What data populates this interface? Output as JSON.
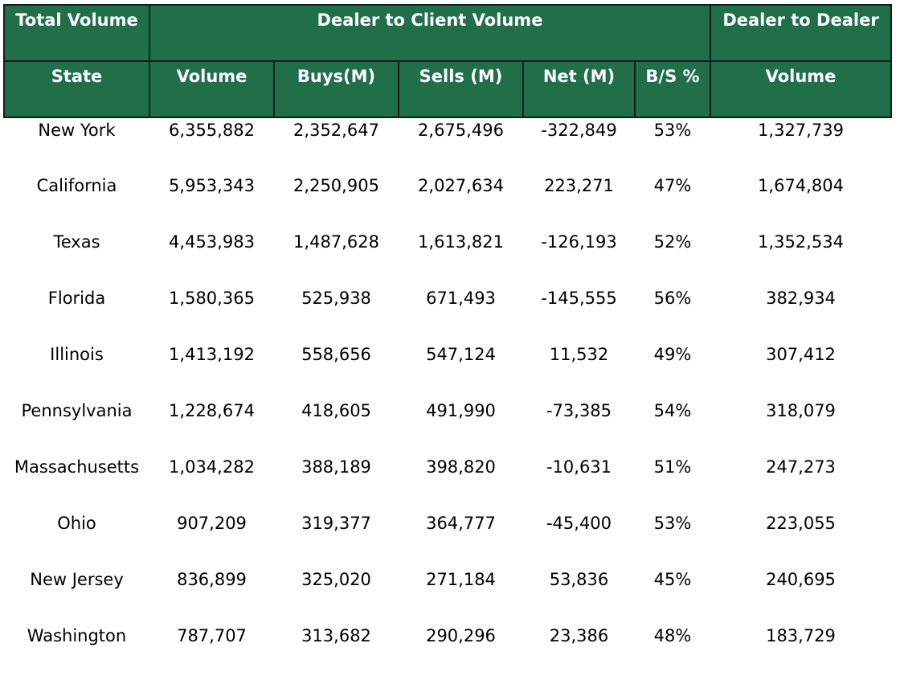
{
  "header": {
    "group_row": {
      "total_volume": "Total Volume",
      "dealer_to_client": "Dealer to Client Volume",
      "dealer_to_dealer": "Dealer to Dealer"
    },
    "columns": [
      "State",
      "Volume",
      "Buys(M)",
      "Sells (M)",
      "Net (M)",
      "B/S %",
      "Volume"
    ]
  },
  "rows": [
    [
      "New York",
      "6,355,882",
      "2,352,647",
      "2,675,496",
      "-322,849",
      "53%",
      "1,327,739"
    ],
    [
      "California",
      "5,953,343",
      "2,250,905",
      "2,027,634",
      "223,271",
      "47%",
      "1,674,804"
    ],
    [
      "Texas",
      "4,453,983",
      "1,487,628",
      "1,613,821",
      "-126,193",
      "52%",
      "1,352,534"
    ],
    [
      "Florida",
      "1,580,365",
      "525,938",
      "671,493",
      "-145,555",
      "56%",
      "382,934"
    ],
    [
      "Illinois",
      "1,413,192",
      "558,656",
      "547,124",
      "11,532",
      "49%",
      "307,412"
    ],
    [
      "Pennsylvania",
      "1,228,674",
      "418,605",
      "491,990",
      "-73,385",
      "54%",
      "318,079"
    ],
    [
      "Massachusetts",
      "1,034,282",
      "388,189",
      "398,820",
      "-10,631",
      "51%",
      "247,273"
    ],
    [
      "Ohio",
      "907,209",
      "319,377",
      "364,777",
      "-45,400",
      "53%",
      "223,055"
    ],
    [
      "New Jersey",
      "836,899",
      "325,020",
      "271,184",
      "53,836",
      "45%",
      "240,695"
    ],
    [
      "Washington",
      "787,707",
      "313,682",
      "290,296",
      "23,386",
      "48%",
      "183,729"
    ]
  ],
  "colors": {
    "header_background": "#216e4a",
    "header_text": "#ffffff",
    "header_border": "#0f1f17",
    "body_text": "#000000"
  }
}
